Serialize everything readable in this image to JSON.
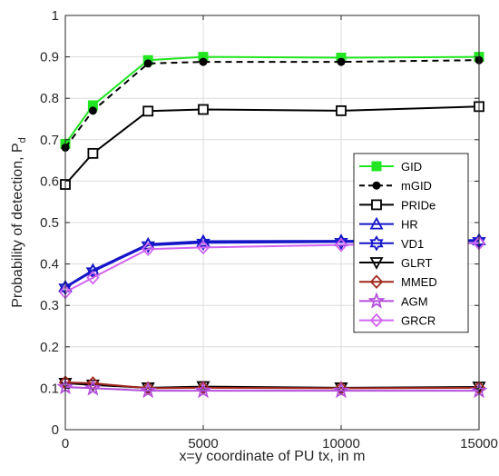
{
  "chart_data": {
    "type": "line",
    "xlabel": "x=y coordinate of PU tx, in m",
    "ylabel": "Probability of detection, P",
    "ylabel_sub": "d",
    "xlim": [
      0,
      15000
    ],
    "ylim": [
      0,
      1
    ],
    "xticks": [
      0,
      5000,
      10000,
      15000
    ],
    "yticks": [
      0,
      0.1,
      0.2,
      0.3,
      0.4,
      0.5,
      0.6,
      0.7,
      0.8,
      0.9,
      1
    ],
    "ytick_labels": [
      "0",
      "0.1",
      "0.2",
      "0.3",
      "0.4",
      "0.5",
      "0.6",
      "0.7",
      "0.8",
      "0.9",
      "1"
    ],
    "grid": true,
    "legend_position": "right-middle",
    "x": [
      0,
      1000,
      3000,
      5000,
      10000,
      15000
    ],
    "series": [
      {
        "name": "GID",
        "values": [
          0.69,
          0.783,
          0.892,
          0.9,
          0.898,
          0.9
        ],
        "color": "#22e622",
        "marker": "square-filled",
        "dash": "solid"
      },
      {
        "name": "mGID",
        "values": [
          0.681,
          0.77,
          0.884,
          0.888,
          0.888,
          0.892
        ],
        "color": "#000000",
        "marker": "circle-filled",
        "dash": "dashed"
      },
      {
        "name": "PRIDe",
        "values": [
          0.592,
          0.667,
          0.769,
          0.773,
          0.77,
          0.78
        ],
        "color": "#000000",
        "marker": "square-open",
        "dash": "solid"
      },
      {
        "name": "HR",
        "values": [
          0.345,
          0.385,
          0.448,
          0.455,
          0.456,
          0.458
        ],
        "color": "#1414c8",
        "marker": "triangle-up-open",
        "dash": "solid"
      },
      {
        "name": "VD1",
        "values": [
          0.343,
          0.382,
          0.445,
          0.451,
          0.453,
          0.455
        ],
        "color": "#1414c8",
        "marker": "hexagram-open",
        "dash": "solid"
      },
      {
        "name": "GLRT",
        "values": [
          0.112,
          0.108,
          0.101,
          0.104,
          0.101,
          0.103
        ],
        "color": "#000000",
        "marker": "triangle-down-open",
        "dash": "solid"
      },
      {
        "name": "MMED",
        "values": [
          0.114,
          0.112,
          0.1,
          0.101,
          0.1,
          0.101
        ],
        "color": "#a0281e",
        "marker": "diamond-open",
        "dash": "solid"
      },
      {
        "name": "AGM",
        "values": [
          0.103,
          0.1,
          0.094,
          0.094,
          0.094,
          0.094
        ],
        "color": "#b450dc",
        "marker": "star-open",
        "dash": "solid"
      },
      {
        "name": "GRCR",
        "values": [
          0.332,
          0.367,
          0.436,
          0.44,
          0.446,
          0.45
        ],
        "color": "#d264f0",
        "marker": "diamond-open",
        "dash": "solid"
      }
    ]
  }
}
